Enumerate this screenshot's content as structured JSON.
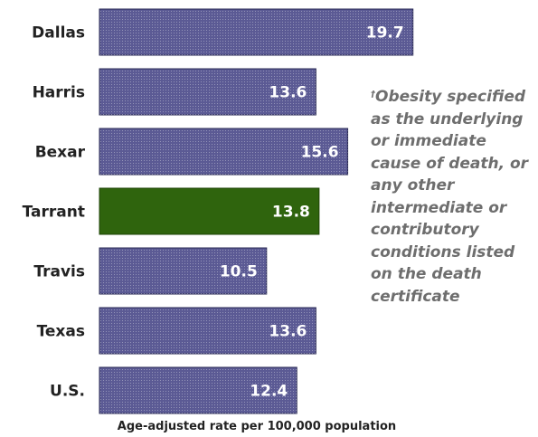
{
  "chart_data": {
    "type": "bar",
    "orientation": "horizontal",
    "categories": [
      "Dallas",
      "Harris",
      "Bexar",
      "Tarrant",
      "Travis",
      "Texas",
      "U.S."
    ],
    "values": [
      19.7,
      13.6,
      15.6,
      13.8,
      10.5,
      13.6,
      12.4
    ],
    "value_labels": [
      "19.7",
      "13.6",
      "15.6",
      "13.8",
      "10.5",
      "13.6",
      "12.4"
    ],
    "highlight_category": "Tarrant",
    "xlabel": "Age-adjusted rate per 100,000 population",
    "ylabel": "",
    "title": "",
    "grid": false,
    "legend": "none",
    "colors": {
      "bar": "#5b5a94",
      "highlight": "#2f640d",
      "bar_border": "#2a2a55"
    }
  },
  "note": {
    "marker": "†",
    "text": "Obesity specified as the underlying or immediate cause of death, or any other intermediate or contributory conditions listed on the death certificate"
  }
}
